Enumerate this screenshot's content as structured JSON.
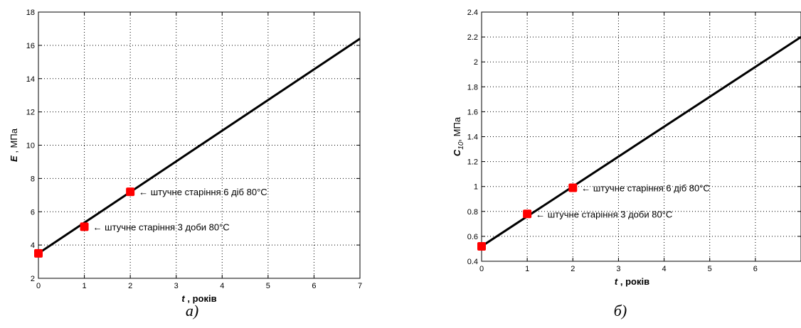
{
  "chart_data": [
    {
      "type": "line",
      "x_var": "t",
      "x_unit": ", років",
      "y_var": "E",
      "y_sub": "",
      "y_unit": ", МПа",
      "xlim": [
        0,
        7
      ],
      "ylim": [
        2,
        18
      ],
      "xticks": [
        0,
        1,
        2,
        3,
        4,
        5,
        6,
        7
      ],
      "yticks": [
        2,
        4,
        6,
        8,
        10,
        12,
        14,
        16,
        18
      ],
      "xtick_labels": [
        "0",
        "1",
        "2",
        "3",
        "4",
        "5",
        "6",
        "7"
      ],
      "ytick_labels": [
        "2",
        "4",
        "6",
        "8",
        "10",
        "12",
        "14",
        "16",
        "18"
      ],
      "grid": true,
      "line": {
        "x": [
          0,
          7
        ],
        "y": [
          3.5,
          16.4
        ],
        "color": "#000000"
      },
      "points": [
        {
          "x": 0,
          "y": 3.5,
          "label": ""
        },
        {
          "x": 1,
          "y": 5.1,
          "label": "← штучне старіння 3 доби 80°C"
        },
        {
          "x": 2,
          "y": 7.2,
          "label": "← штучне старіння 6 діб 80°C"
        }
      ],
      "point_color": "#ff0000",
      "caption": "а)"
    },
    {
      "type": "line",
      "x_var": "t",
      "x_unit": ", років",
      "y_var": "C",
      "y_sub": "10",
      "y_unit": ", МПа",
      "xlim": [
        0,
        7
      ],
      "ylim": [
        0.4,
        2.4
      ],
      "xticks": [
        0,
        1,
        2,
        3,
        4,
        5,
        6
      ],
      "yticks": [
        0.4,
        0.6,
        0.8,
        1.0,
        1.2,
        1.4,
        1.6,
        1.8,
        2.0,
        2.2,
        2.4
      ],
      "xtick_labels": [
        "0",
        "1",
        "2",
        "3",
        "4",
        "5",
        "6"
      ],
      "ytick_labels": [
        "0.4",
        "0.6",
        "0.8",
        "1",
        "1.2",
        "1.4",
        "1.6",
        "1.8",
        "2",
        "2.2",
        "2.4"
      ],
      "grid": true,
      "line": {
        "x": [
          0,
          7
        ],
        "y": [
          0.52,
          2.2
        ],
        "color": "#000000"
      },
      "points": [
        {
          "x": 0,
          "y": 0.52,
          "label": ""
        },
        {
          "x": 1,
          "y": 0.78,
          "label": "← штучне старіння 3 доби 80°C"
        },
        {
          "x": 2,
          "y": 0.99,
          "label": "← штучне старіння 6 діб 80°C"
        }
      ],
      "point_color": "#ff0000",
      "caption": "б)"
    }
  ]
}
